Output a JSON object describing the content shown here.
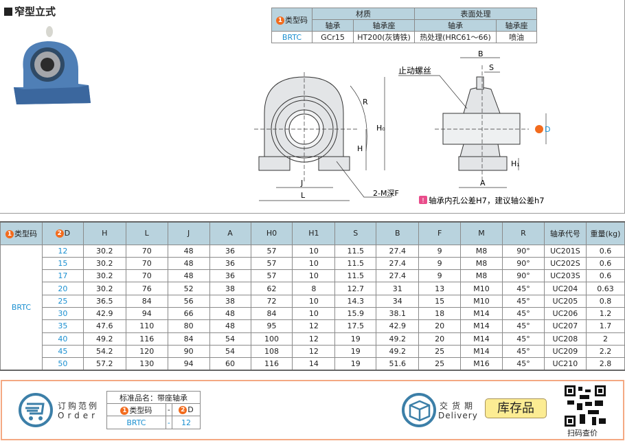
{
  "title": "窄型立式",
  "spec_table": {
    "type_code_header": "类型码",
    "material_header": "材质",
    "surface_header": "表面处理",
    "sub_headers": [
      "轴承",
      "轴承座",
      "轴承",
      "轴承座"
    ],
    "row": {
      "type": "BRTC",
      "values": [
        "GCr15",
        "HT200(灰铸铁)",
        "热处理(HRC61～66)",
        "喷油"
      ]
    }
  },
  "drawing": {
    "labels": {
      "B": "B",
      "S": "S",
      "stop_screw": "止动螺丝",
      "R": "R",
      "H0": "H₀",
      "H": "H",
      "D": "D",
      "H1": "H₁",
      "A": "A",
      "J": "J",
      "L": "L",
      "mf": "2-M深F"
    },
    "note": "轴承内孔公差H7，建议轴公差h7"
  },
  "badge_1": "1",
  "badge_2": "2",
  "badge_note": "!",
  "main_table": {
    "headers": [
      "类型码",
      "D",
      "H",
      "L",
      "J",
      "A",
      "H0",
      "H1",
      "S",
      "B",
      "F",
      "M",
      "R",
      "轴承代号",
      "重量(kg)"
    ],
    "type": "BRTC",
    "rows": [
      [
        "12",
        "30.2",
        "70",
        "48",
        "36",
        "57",
        "10",
        "11.5",
        "27.4",
        "9",
        "M8",
        "90°",
        "UC201S",
        "0.6"
      ],
      [
        "15",
        "30.2",
        "70",
        "48",
        "36",
        "57",
        "10",
        "11.5",
        "27.4",
        "9",
        "M8",
        "90°",
        "UC202S",
        "0.6"
      ],
      [
        "17",
        "30.2",
        "70",
        "48",
        "36",
        "57",
        "10",
        "11.5",
        "27.4",
        "9",
        "M8",
        "90°",
        "UC203S",
        "0.6"
      ],
      [
        "20",
        "30.2",
        "76",
        "52",
        "38",
        "62",
        "8",
        "12.7",
        "31",
        "13",
        "M10",
        "45°",
        "UC204",
        "0.63"
      ],
      [
        "25",
        "36.5",
        "84",
        "56",
        "38",
        "72",
        "10",
        "14.3",
        "34",
        "15",
        "M10",
        "45°",
        "UC205",
        "0.8"
      ],
      [
        "30",
        "42.9",
        "94",
        "66",
        "48",
        "84",
        "10",
        "15.9",
        "38.1",
        "18",
        "M14",
        "45°",
        "UC206",
        "1.2"
      ],
      [
        "35",
        "47.6",
        "110",
        "80",
        "48",
        "95",
        "12",
        "17.5",
        "42.9",
        "20",
        "M14",
        "45°",
        "UC207",
        "1.7"
      ],
      [
        "40",
        "49.2",
        "116",
        "84",
        "54",
        "100",
        "12",
        "19",
        "49.2",
        "20",
        "M14",
        "45°",
        "UC208",
        "2"
      ],
      [
        "45",
        "54.2",
        "120",
        "90",
        "54",
        "108",
        "12",
        "19",
        "49.2",
        "25",
        "M14",
        "45°",
        "UC209",
        "2.2"
      ],
      [
        "50",
        "57.2",
        "130",
        "94",
        "60",
        "116",
        "14",
        "19",
        "51.6",
        "25",
        "M16",
        "45°",
        "UC210",
        "2.8"
      ]
    ]
  },
  "order": {
    "label_cn": "订购范例",
    "label_en": "Order",
    "std_name": "标准品名：带座轴承",
    "type_header": "类型码",
    "dash": "-",
    "d_header": "D",
    "type_value": "BRTC",
    "d_value": "12"
  },
  "delivery": {
    "label_cn": "交货期",
    "label_en": "Delivery",
    "status": "库存品"
  },
  "qr": {
    "caption": "扫码查价"
  },
  "colors": {
    "header_bg": "#b9d3de",
    "accent_blue": "#1a8fd0",
    "badge_orange": "#f26b1d",
    "stock_bg": "#fcec93",
    "border_orange": "#f4a882"
  }
}
